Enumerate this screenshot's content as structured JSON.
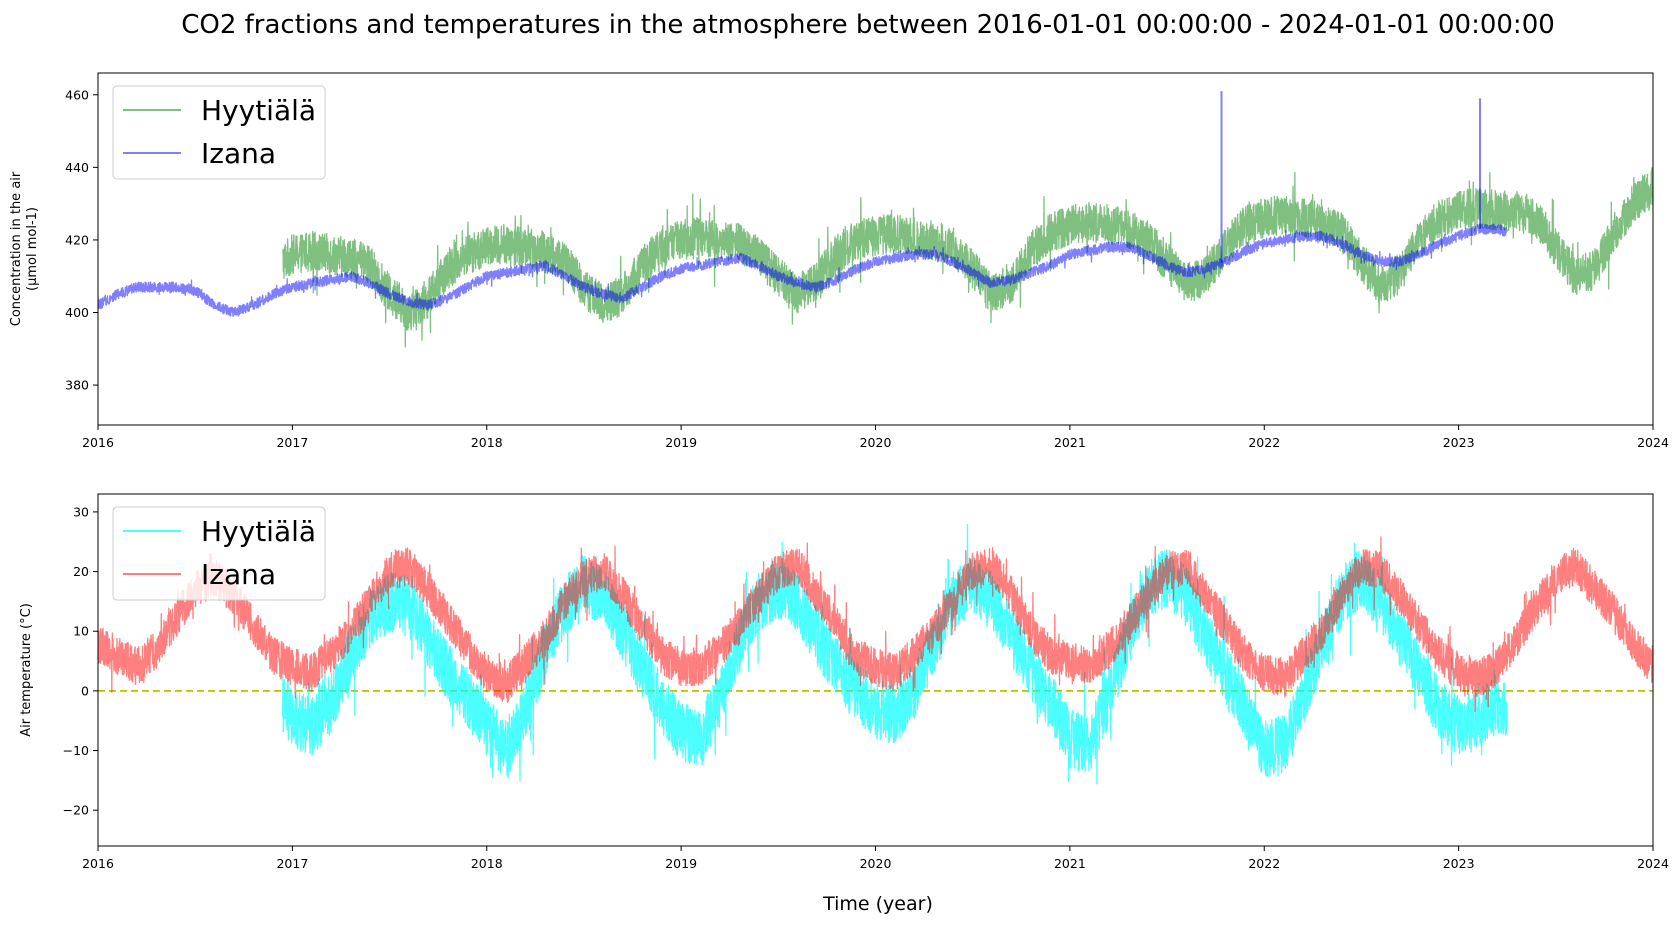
{
  "figure": {
    "title": "CO2 fractions and temperatures in the atmosphere between 2016-01-01 00:00:00 - 2024-01-01 00:00:00",
    "xlabel": "Time (year)"
  },
  "chart_data": [
    {
      "type": "line",
      "ylabel_lines": [
        "Concentration in the air",
        "(µmol mol-1)"
      ],
      "xlim": [
        2016,
        2024
      ],
      "ylim": [
        369,
        466
      ],
      "x_ticks": [
        2016,
        2017,
        2018,
        2019,
        2020,
        2021,
        2022,
        2023,
        2024
      ],
      "y_ticks": [
        380,
        400,
        420,
        440,
        460
      ],
      "legend": "upper-left",
      "grid": false,
      "series": [
        {
          "name": "Hyytiälä",
          "color": "#008000",
          "opacity": 0.5,
          "x": [
            2016.95,
            2017.0,
            2017.1,
            2017.2,
            2017.3,
            2017.4,
            2017.5,
            2017.6,
            2017.7,
            2017.8,
            2017.9,
            2018.0,
            2018.1,
            2018.2,
            2018.3,
            2018.4,
            2018.5,
            2018.6,
            2018.7,
            2018.8,
            2018.9,
            2019.0,
            2019.1,
            2019.2,
            2019.3,
            2019.4,
            2019.5,
            2019.6,
            2019.7,
            2019.8,
            2019.9,
            2020.0,
            2020.1,
            2020.2,
            2020.3,
            2020.4,
            2020.5,
            2020.6,
            2020.7,
            2020.8,
            2020.9,
            2021.0,
            2021.1,
            2021.2,
            2021.3,
            2021.4,
            2021.5,
            2021.6,
            2021.7,
            2021.8,
            2021.9,
            2022.0,
            2022.1,
            2022.2,
            2022.3,
            2022.4,
            2022.5,
            2022.6,
            2022.7,
            2022.8,
            2022.9,
            2023.0,
            2023.1,
            2023.2,
            2023.3,
            2023.4,
            2023.5,
            2023.6,
            2023.7,
            2023.8,
            2023.9,
            2024.0
          ],
          "y": [
            414,
            416,
            417,
            416,
            415,
            413,
            405,
            400,
            404,
            412,
            416,
            418,
            419,
            418,
            417,
            414,
            407,
            402,
            405,
            413,
            418,
            420,
            421,
            420,
            419,
            416,
            410,
            405,
            409,
            416,
            420,
            421,
            422,
            421,
            420,
            418,
            412,
            405,
            408,
            417,
            422,
            424,
            425,
            424,
            423,
            420,
            414,
            408,
            410,
            418,
            424,
            426,
            427,
            426,
            425,
            422,
            414,
            407,
            411,
            420,
            426,
            428,
            429,
            428,
            428,
            426,
            418,
            410,
            412,
            422,
            430,
            435
          ]
        },
        {
          "name": "Izana",
          "color": "#0000ff",
          "opacity": 0.5,
          "x": [
            2016.0,
            2016.1,
            2016.2,
            2016.3,
            2016.4,
            2016.5,
            2016.6,
            2016.7,
            2016.8,
            2016.9,
            2017.0,
            2017.1,
            2017.2,
            2017.3,
            2017.4,
            2017.5,
            2017.6,
            2017.7,
            2017.8,
            2017.9,
            2018.0,
            2018.1,
            2018.2,
            2018.3,
            2018.4,
            2018.5,
            2018.6,
            2018.7,
            2018.8,
            2018.9,
            2019.0,
            2019.1,
            2019.2,
            2019.3,
            2019.4,
            2019.5,
            2019.6,
            2019.7,
            2019.8,
            2019.9,
            2020.0,
            2020.1,
            2020.2,
            2020.3,
            2020.4,
            2020.5,
            2020.6,
            2020.7,
            2020.8,
            2020.9,
            2021.0,
            2021.1,
            2021.2,
            2021.3,
            2021.4,
            2021.5,
            2021.6,
            2021.7,
            2021.8,
            2021.9,
            2022.0,
            2022.1,
            2022.2,
            2022.3,
            2022.4,
            2022.5,
            2022.6,
            2022.7,
            2022.8,
            2022.9,
            2023.0,
            2023.1,
            2023.2,
            2023.25
          ],
          "y": [
            402,
            405,
            407,
            407,
            407,
            406,
            402,
            400,
            402,
            405,
            407,
            408,
            409,
            410,
            408,
            405,
            403,
            402,
            404,
            407,
            410,
            411,
            412,
            413,
            410,
            407,
            405,
            404,
            407,
            410,
            412,
            413,
            414,
            415,
            413,
            410,
            408,
            407,
            409,
            412,
            414,
            415,
            416,
            416,
            414,
            411,
            408,
            409,
            411,
            413,
            416,
            417,
            418,
            418,
            416,
            413,
            411,
            412,
            414,
            417,
            419,
            420,
            421,
            421,
            419,
            416,
            414,
            414,
            416,
            419,
            421,
            423,
            423,
            422
          ]
        }
      ],
      "spikes": [
        {
          "series": "Izana",
          "x": 2021.78,
          "y": 461
        },
        {
          "series": "Izana",
          "x": 2023.11,
          "y": 459
        }
      ]
    },
    {
      "type": "line",
      "ylabel_lines": [
        "Air temperature (°C)"
      ],
      "xlim": [
        2016,
        2024
      ],
      "ylim": [
        -26,
        33
      ],
      "x_ticks": [
        2016,
        2017,
        2018,
        2019,
        2020,
        2021,
        2022,
        2023,
        2024
      ],
      "y_ticks": [
        -20,
        -10,
        0,
        10,
        20,
        30
      ],
      "legend": "upper-left",
      "grid": false,
      "reference_line": {
        "y": 0,
        "color": "#bfbf00",
        "style": "dashed"
      },
      "series": [
        {
          "name": "Hyytiälä",
          "color": "#00ffff",
          "opacity": 0.7,
          "x": [
            2016.95,
            2017.0,
            2017.1,
            2017.2,
            2017.3,
            2017.4,
            2017.5,
            2017.6,
            2017.7,
            2017.8,
            2017.9,
            2018.0,
            2018.1,
            2018.2,
            2018.3,
            2018.4,
            2018.5,
            2018.6,
            2018.7,
            2018.8,
            2018.9,
            2019.0,
            2019.1,
            2019.2,
            2019.3,
            2019.4,
            2019.5,
            2019.6,
            2019.7,
            2019.8,
            2019.9,
            2020.0,
            2020.1,
            2020.2,
            2020.3,
            2020.4,
            2020.5,
            2020.6,
            2020.7,
            2020.8,
            2020.9,
            2021.0,
            2021.1,
            2021.2,
            2021.3,
            2021.4,
            2021.5,
            2021.6,
            2021.7,
            2021.8,
            2021.9,
            2022.0,
            2022.1,
            2022.2,
            2022.3,
            2022.4,
            2022.5,
            2022.6,
            2022.7,
            2022.8,
            2022.9,
            2023.0,
            2023.1,
            2023.2,
            2023.25
          ],
          "y": [
            -2,
            -5,
            -6,
            -2,
            6,
            12,
            15,
            14,
            9,
            3,
            -1,
            -6,
            -10,
            -3,
            7,
            14,
            18,
            16,
            10,
            4,
            -2,
            -7,
            -8,
            -1,
            8,
            15,
            17,
            15,
            9,
            4,
            0,
            -3,
            -4,
            0,
            8,
            15,
            18,
            15,
            9,
            4,
            -2,
            -8,
            -9,
            -1,
            9,
            17,
            19,
            16,
            9,
            3,
            -3,
            -10,
            -9,
            -1,
            8,
            16,
            19,
            15,
            9,
            3,
            -3,
            -6,
            -5,
            -2,
            -4
          ]
        },
        {
          "name": "Izana",
          "color": "#ff0000",
          "opacity": 0.5,
          "x": [
            2016.0,
            2016.1,
            2016.2,
            2016.3,
            2016.4,
            2016.5,
            2016.6,
            2016.7,
            2016.8,
            2016.9,
            2017.0,
            2017.1,
            2017.2,
            2017.3,
            2017.4,
            2017.5,
            2017.6,
            2017.7,
            2017.8,
            2017.9,
            2018.0,
            2018.1,
            2018.2,
            2018.3,
            2018.4,
            2018.5,
            2018.6,
            2018.7,
            2018.8,
            2018.9,
            2019.0,
            2019.1,
            2019.2,
            2019.3,
            2019.4,
            2019.5,
            2019.6,
            2019.7,
            2019.8,
            2019.9,
            2020.0,
            2020.1,
            2020.2,
            2020.3,
            2020.4,
            2020.5,
            2020.6,
            2020.7,
            2020.8,
            2020.9,
            2021.0,
            2021.1,
            2021.2,
            2021.3,
            2021.4,
            2021.5,
            2021.6,
            2021.7,
            2021.8,
            2021.9,
            2022.0,
            2022.1,
            2022.2,
            2022.3,
            2022.4,
            2022.5,
            2022.6,
            2022.7,
            2022.8,
            2022.9,
            2023.0,
            2023.1,
            2023.2,
            2023.3,
            2023.4,
            2023.5,
            2023.6,
            2023.7,
            2023.8,
            2023.9,
            2024.0
          ],
          "y": [
            8,
            6,
            4,
            7,
            12,
            17,
            19,
            16,
            11,
            6,
            4,
            3,
            6,
            10,
            15,
            20,
            21,
            17,
            12,
            7,
            3,
            1,
            5,
            9,
            15,
            19,
            20,
            16,
            11,
            6,
            4,
            4,
            7,
            11,
            16,
            20,
            21,
            16,
            11,
            6,
            4,
            3,
            6,
            10,
            15,
            20,
            21,
            16,
            10,
            6,
            5,
            4,
            7,
            11,
            16,
            20,
            21,
            16,
            11,
            6,
            3,
            2,
            6,
            10,
            16,
            21,
            20,
            16,
            11,
            6,
            3,
            2,
            4,
            9,
            14,
            19,
            21,
            17,
            13,
            8,
            4
          ]
        }
      ]
    }
  ]
}
